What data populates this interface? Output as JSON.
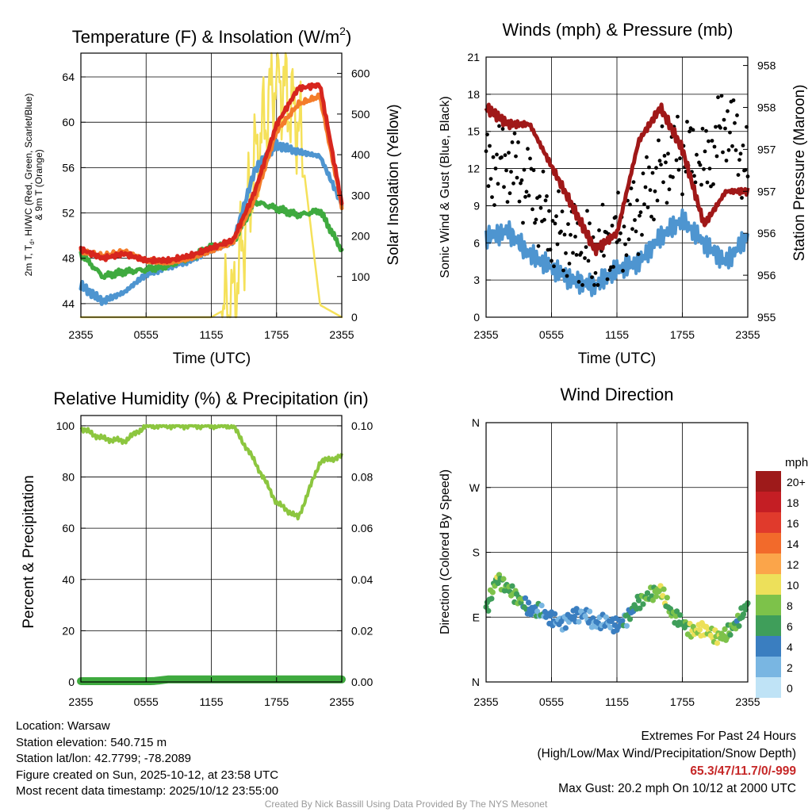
{
  "charts": {
    "temperature": {
      "title": "Temperature (F) & Insolation (W/m",
      "title_sup": "2",
      "title_end": ")",
      "ylabel_left_lines": [
        "2m T, T",
        "d",
        ", HI/WC (Red, Green, Scarlet/Blue)",
        "& 9m T (Orange)"
      ],
      "ylabel_right": "Solar Insolation (Yellow)",
      "xlabel": "Time (UTC)",
      "y_ticks": [
        "44",
        "48",
        "52",
        "56",
        "60",
        "64"
      ],
      "y2_ticks": [
        "0",
        "100",
        "200",
        "300",
        "400",
        "500",
        "600"
      ]
    },
    "winds": {
      "title": "Winds (mph) & Pressure (mb)",
      "ylabel_left": "Sonic Wind & Gust (Blue, Black)",
      "ylabel_right": "Station Pressure (Maroon)",
      "xlabel": "Time (UTC)",
      "y_ticks": [
        "0",
        "3",
        "6",
        "9",
        "12",
        "15",
        "18",
        "21"
      ],
      "y2_ticks": [
        "955",
        "956",
        "956",
        "957",
        "957",
        "958",
        "958"
      ]
    },
    "humidity": {
      "title": "Relative Humidity (%) & Precipitation (in)",
      "ylabel_left": "Percent & Precipitation",
      "y_ticks": [
        "0",
        "20",
        "40",
        "60",
        "80",
        "100"
      ],
      "y2_ticks": [
        "0.00",
        "0.02",
        "0.04",
        "0.06",
        "0.08",
        "0.10"
      ]
    },
    "wind_direction": {
      "title": "Wind Direction",
      "ylabel_left": "Direction (Colored By Speed)",
      "y_ticks": [
        "N",
        "E",
        "S",
        "W",
        "N"
      ],
      "legend_title": "mph",
      "legend_labels": [
        "20+",
        "18",
        "16",
        "14",
        "12",
        "10",
        "8",
        "6",
        "4",
        "2",
        "0"
      ],
      "legend_colors": [
        "#9e1a1a",
        "#c41e24",
        "#e03a2c",
        "#f26a2b",
        "#fba54a",
        "#ede05a",
        "#7dc24a",
        "#3f9e5a",
        "#3a7ec0",
        "#79b6e2",
        "#bfe3f6"
      ]
    }
  },
  "x_ticks": [
    "2355",
    "0555",
    "1155",
    "1755",
    "2355"
  ],
  "colors": {
    "t2m": "#d7261e",
    "td": "#3faa3f",
    "t9m": "#f47c2a",
    "hi": "#4e95d0",
    "solar": "#f5e15a",
    "wind": "#4e95d0",
    "gust": "#000000",
    "pressure": "#a01818",
    "rh": "#8cc63f",
    "precip": "#3faa3f"
  },
  "chart_data": [
    {
      "id": "temperature",
      "type": "line",
      "x": [
        0,
        2,
        4,
        6,
        8,
        10,
        12,
        14,
        16,
        18,
        20,
        22,
        24
      ],
      "x_unit": "hours after 2355 UTC",
      "ylim": [
        42.8,
        66.1
      ],
      "y2lim": [
        0,
        650
      ],
      "series": [
        {
          "name": "2m T",
          "color": "#d7261e",
          "values": [
            48.8,
            48.0,
            48.4,
            47.8,
            47.8,
            48.2,
            48.9,
            49.6,
            53.9,
            59.8,
            63.0,
            63.3,
            52.8
          ]
        },
        {
          "name": "Td",
          "color": "#3faa3f",
          "values": [
            48.4,
            46.4,
            46.8,
            47.0,
            47.4,
            48.0,
            49.0,
            49.4,
            53.0,
            52.4,
            51.8,
            52.2,
            48.7
          ]
        },
        {
          "name": "9m T",
          "color": "#f47c2a",
          "values": [
            48.6,
            48.2,
            48.6,
            47.8,
            47.6,
            48.0,
            48.7,
            49.4,
            53.2,
            59.2,
            61.6,
            62.3,
            52.6
          ]
        },
        {
          "name": "HI/WC",
          "color": "#4e95d0",
          "values": [
            45.6,
            44.2,
            45.0,
            46.6,
            47.4,
            47.9,
            48.7,
            49.4,
            55.8,
            58.0,
            57.4,
            57.0,
            52.8
          ]
        },
        {
          "name": "Solar",
          "color": "#f5e15a",
          "axis": "right",
          "values": [
            0,
            0,
            0,
            0,
            0,
            0,
            0,
            30,
            380,
            600,
            480,
            30,
            0
          ]
        }
      ]
    },
    {
      "id": "winds",
      "type": "line",
      "x": [
        0,
        2,
        4,
        6,
        8,
        10,
        12,
        14,
        16,
        18,
        20,
        22,
        24
      ],
      "ylim": [
        0,
        21
      ],
      "y2lim": [
        955,
        958.1
      ],
      "series": [
        {
          "name": "Sonic Wind",
          "color": "#4e95d0",
          "values": [
            6.5,
            7.0,
            5.0,
            4.0,
            3.0,
            2.5,
            3.8,
            4.5,
            6.5,
            7.8,
            6.0,
            4.5,
            6.5
          ]
        },
        {
          "name": "Gust",
          "color": "#000000",
          "style": "dots",
          "values": [
            12.0,
            12.5,
            10.5,
            7.0,
            6.0,
            5.0,
            6.5,
            8.5,
            12.0,
            13.5,
            12.0,
            16.0,
            12.0
          ]
        },
        {
          "name": "Station Pressure",
          "color": "#a01818",
          "axis": "right",
          "values": [
            957.5,
            957.3,
            957.3,
            956.8,
            956.3,
            955.8,
            956.0,
            957.1,
            957.5,
            957.0,
            956.1,
            956.5,
            956.5
          ]
        }
      ]
    },
    {
      "id": "humidity",
      "type": "line",
      "x": [
        0,
        2,
        4,
        6,
        8,
        10,
        12,
        14,
        16,
        18,
        20,
        22,
        24
      ],
      "ylim": [
        0,
        104
      ],
      "y2lim": [
        0,
        0.104
      ],
      "series": [
        {
          "name": "Relative Humidity",
          "color": "#8cc63f",
          "values": [
            99,
            95,
            94,
            100,
            100,
            100,
            100,
            100,
            86,
            70,
            64,
            86,
            88
          ]
        },
        {
          "name": "Precipitation",
          "color": "#3faa3f",
          "axis": "right",
          "values": [
            0,
            0,
            0,
            0,
            0.001,
            0.001,
            0.001,
            0.001,
            0.001,
            0.001,
            0.001,
            0.001,
            0.001
          ]
        }
      ]
    },
    {
      "id": "wind_direction",
      "type": "scatter",
      "x": [
        0,
        1,
        2,
        3,
        4,
        5,
        6,
        7,
        8,
        9,
        10,
        11,
        12,
        13,
        14,
        15,
        16,
        17,
        18,
        19,
        20,
        21,
        22,
        23,
        24
      ],
      "ylim": [
        0,
        360
      ],
      "y_tick_values": [
        0,
        90,
        180,
        270,
        360
      ],
      "series": [
        {
          "name": "Wind Direction (deg)",
          "values": [
            100,
            145,
            130,
            115,
            100,
            98,
            88,
            82,
            92,
            95,
            80,
            84,
            78,
            90,
            112,
            120,
            128,
            95,
            82,
            70,
            75,
            62,
            65,
            82,
            108
          ]
        },
        {
          "name": "Wind Speed (mph)",
          "values": [
            6,
            8,
            7,
            7,
            4,
            4,
            4,
            3,
            4,
            3,
            3,
            3,
            4,
            4,
            6,
            7,
            9,
            7,
            6,
            9,
            10,
            9,
            8,
            6,
            6
          ]
        }
      ]
    }
  ],
  "info_left": {
    "location": "Location: Warsaw",
    "elevation": "Station elevation: 540.715 m",
    "latlon": "Station lat/lon: 42.7799; -78.2089",
    "created": "Figure created on Sun, 2025-10-12, at 23:58 UTC",
    "recent": "Most recent data timestamp: 2025/10/12 23:55:00"
  },
  "info_right": {
    "title": "Extremes For Past 24 Hours",
    "subtitle": "(High/Low/Max Wind/Precipitation/Snow Depth)",
    "values": "65.3/47/11.7/0/-999",
    "gust": "Max Gust: 20.2 mph On 10/12 at 2000 UTC"
  },
  "credit": "Created By Nick Bassill Using Data Provided By The NYS Mesonet"
}
